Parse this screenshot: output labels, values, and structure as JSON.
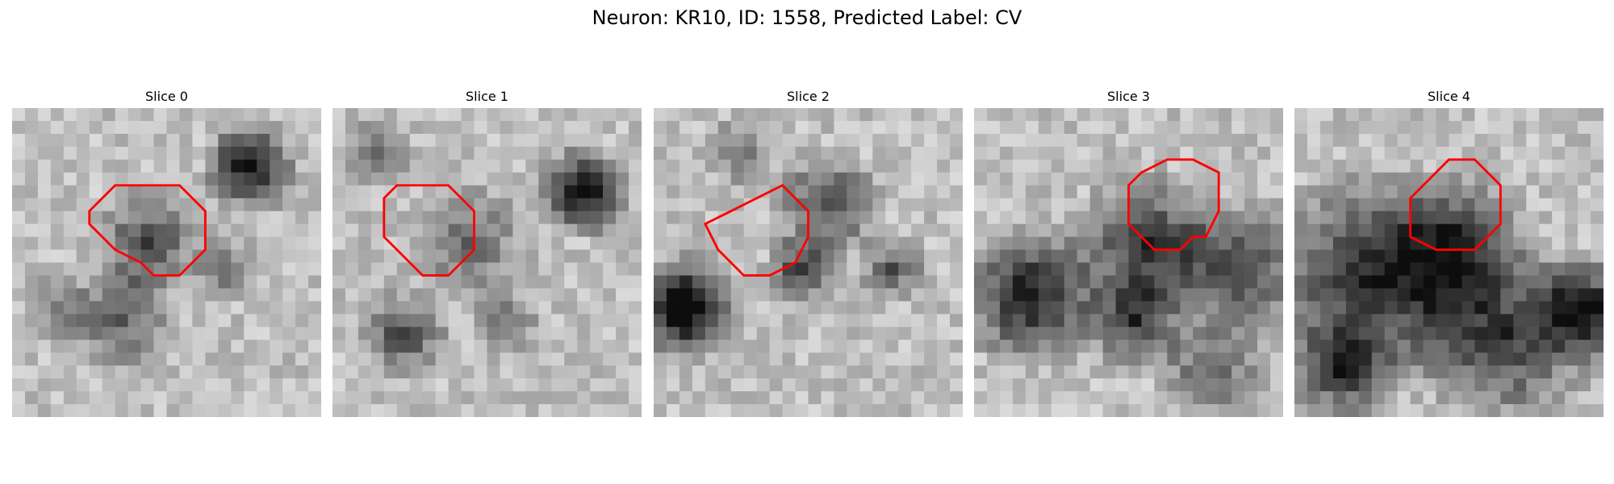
{
  "figure": {
    "title": "Neuron: KR10, ID: 1558, Predicted Label: CV"
  },
  "colors": {
    "contour": "#ff0000"
  },
  "panels": [
    {
      "title": "Slice 0",
      "contour": [
        [
          11,
          6
        ],
        [
          13,
          6
        ],
        [
          15,
          8
        ],
        [
          15,
          11
        ],
        [
          13,
          13
        ],
        [
          11,
          13
        ],
        [
          10,
          12
        ],
        [
          8,
          11
        ],
        [
          6,
          9
        ],
        [
          6,
          8
        ],
        [
          8,
          6
        ]
      ]
    },
    {
      "title": "Slice 1",
      "contour": [
        [
          7,
          6
        ],
        [
          9,
          6
        ],
        [
          11,
          8
        ],
        [
          11,
          11
        ],
        [
          9,
          13
        ],
        [
          7,
          13
        ],
        [
          5,
          11
        ],
        [
          4,
          10
        ],
        [
          4,
          7
        ],
        [
          5,
          6
        ]
      ]
    },
    {
      "title": "Slice 2",
      "contour": [
        [
          10,
          6
        ],
        [
          11,
          7
        ],
        [
          12,
          8
        ],
        [
          12,
          10
        ],
        [
          11,
          12
        ],
        [
          9,
          13
        ],
        [
          7,
          13
        ],
        [
          5,
          11
        ],
        [
          4,
          9
        ],
        [
          6,
          8
        ],
        [
          8,
          7
        ]
      ]
    },
    {
      "title": "Slice 3",
      "contour": [
        [
          17,
          4
        ],
        [
          19,
          5
        ],
        [
          19,
          8
        ],
        [
          18,
          10
        ],
        [
          17,
          10
        ],
        [
          16,
          11
        ],
        [
          14,
          11
        ],
        [
          12,
          9
        ],
        [
          12,
          6
        ],
        [
          13,
          5
        ],
        [
          15,
          4
        ],
        [
          16,
          4
        ]
      ]
    },
    {
      "title": "Slice 4",
      "contour": [
        [
          14,
          4
        ],
        [
          16,
          6
        ],
        [
          16,
          9
        ],
        [
          14,
          11
        ],
        [
          11,
          11
        ],
        [
          9,
          10
        ],
        [
          9,
          7
        ],
        [
          11,
          5
        ],
        [
          12,
          4
        ]
      ]
    }
  ]
}
